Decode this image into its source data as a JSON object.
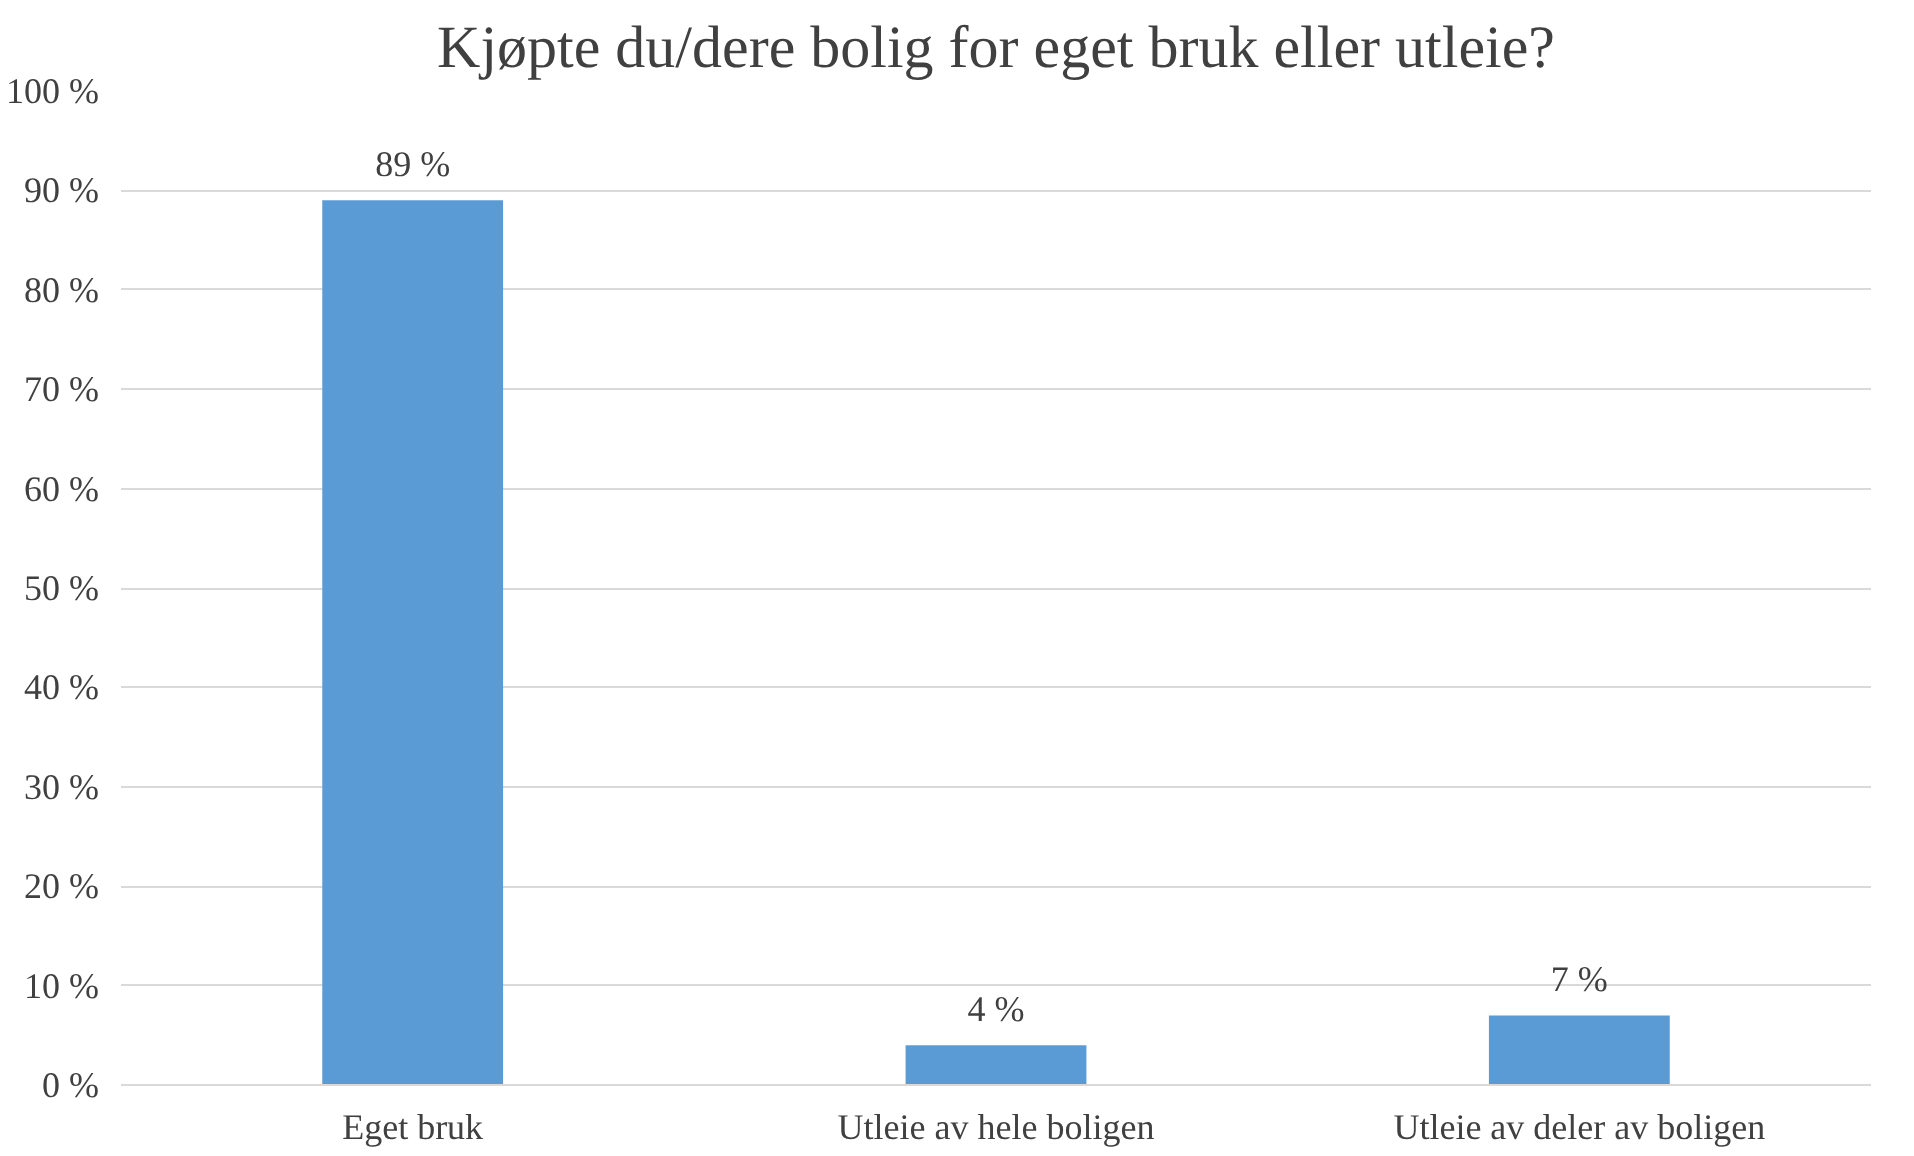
{
  "chart_data": {
    "type": "bar",
    "title": "Kjøpte du/dere bolig for eget bruk eller utleie?",
    "categories": [
      "Eget bruk",
      "Utleie av hele boligen",
      "Utleie av deler av boligen"
    ],
    "values": [
      89,
      4,
      7
    ],
    "color": "#5b9bd5",
    "ylim": [
      0,
      100
    ],
    "yticks": [
      {
        "value": 0,
        "label": "0 %"
      },
      {
        "value": 10,
        "label": "10 %"
      },
      {
        "value": 20,
        "label": "20 %"
      },
      {
        "value": 30,
        "label": "30 %"
      },
      {
        "value": 40,
        "label": "40 %"
      },
      {
        "value": 50,
        "label": "50 %"
      },
      {
        "value": 60,
        "label": "60 %"
      },
      {
        "value": 70,
        "label": "70 %"
      },
      {
        "value": 80,
        "label": "80 %"
      },
      {
        "value": 90,
        "label": "90 %"
      },
      {
        "value": 100,
        "label": "100 %"
      }
    ],
    "value_labels": [
      "89 %",
      "4 %",
      "7 %"
    ],
    "grid": "y"
  }
}
